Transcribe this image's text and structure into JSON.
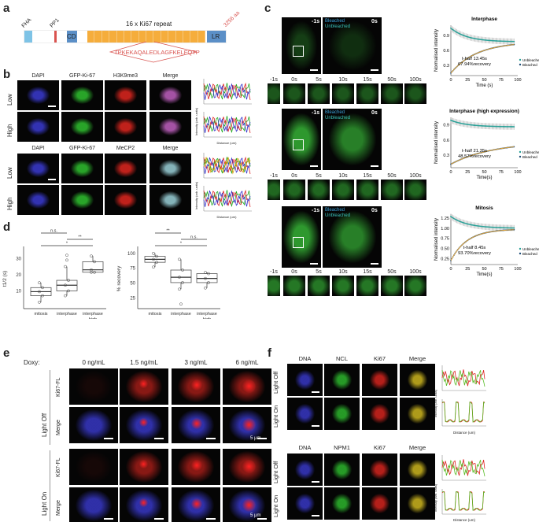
{
  "panel_labels": {
    "a": "a",
    "b": "b",
    "c": "c",
    "d": "d",
    "e": "e",
    "f": "f"
  },
  "a": {
    "domains": [
      "FHA",
      "PP1",
      "CD",
      "LR"
    ],
    "repeat_label": "16 x Ki67 repeat",
    "repeat_count": 16,
    "length_label": "3256 aa",
    "sequence": "TPKEKAQALEDLAGFKELFQTP",
    "colors": {
      "fha": "#7ec3e6",
      "pp1": "#d9534f",
      "cd": "#5b8fc7",
      "repeat": "#f5ad3c",
      "lr": "#5b8fc7",
      "seq": "#d9534f"
    }
  },
  "b": {
    "block1_headers": [
      "DAPI",
      "GFP-Ki-67",
      "H3K9me3",
      "Merge"
    ],
    "block2_headers": [
      "DAPI",
      "GFP-Ki-67",
      "MeCP2",
      "Merge"
    ],
    "row_labels": [
      "Low",
      "High"
    ],
    "plot_ylabel": "Intensity (arb. units)",
    "plot_xlabel": "Distance (um)"
  },
  "c": {
    "rows": [
      {
        "pre": "-1s",
        "post": "0s",
        "bleached": "Bleached",
        "unbleached": "Unbleached"
      },
      {
        "pre": "-1s",
        "post": "0s",
        "bleached": "Bleached",
        "unbleached": "Unbleached"
      },
      {
        "pre": "-1s",
        "post": "0s",
        "bleached": "Bleached",
        "unbleached": "Unbleached"
      }
    ],
    "timepoints": [
      "-1s",
      "0s",
      "5s",
      "10s",
      "15s",
      "50s",
      "100s"
    ]
  },
  "chart_data": [
    {
      "type": "line",
      "title": "Interphase",
      "xlabel": "Time (s)",
      "ylabel": "Normalised intensity",
      "xlim": [
        0,
        100
      ],
      "xticks": [
        0,
        25,
        50,
        75,
        100
      ],
      "yticks": [
        0.3,
        0.6,
        0.9
      ],
      "ylim": [
        0.1,
        1.1
      ],
      "series": [
        {
          "name": "Unbleached",
          "color": "#2aa198"
        },
        {
          "name": "Bleached",
          "color": "#1f4e79"
        }
      ],
      "annotation": [
        "t-half 13.45s",
        "67.94%recovery"
      ],
      "unbleached_end": 0.77,
      "bleached_start": 0.15,
      "bleached_end": 0.77
    },
    {
      "type": "line",
      "title": "Interphase (high expression)",
      "xlabel": "Time(s)",
      "ylabel": "Normalised intensity",
      "xlim": [
        0,
        100
      ],
      "xticks": [
        0,
        25,
        50,
        75,
        100
      ],
      "yticks": [
        0.3,
        0.6,
        0.9
      ],
      "ylim": [
        0.05,
        1.05
      ],
      "series": [
        {
          "name": "Unbleached",
          "color": "#2aa198"
        },
        {
          "name": "Bleached",
          "color": "#1f4e79"
        }
      ],
      "annotation": [
        "t-half 21.35s",
        "48.57%recovery"
      ],
      "unbleached_end": 0.86,
      "bleached_start": 0.12,
      "bleached_end": 0.56
    },
    {
      "type": "line",
      "title": "Mitosis",
      "xlabel": "Time(s)",
      "ylabel": "Normalised intensity",
      "xlim": [
        0,
        100
      ],
      "xticks": [
        0,
        25,
        50,
        75,
        100
      ],
      "yticks": [
        0.25,
        0.5,
        0.75,
        1.0,
        1.25
      ],
      "ylim": [
        0.1,
        1.35
      ],
      "series": [
        {
          "name": "Unbleached",
          "color": "#2aa198"
        },
        {
          "name": "Bleached",
          "color": "#1f4e79"
        }
      ],
      "annotation": [
        "t-half 8.45s",
        "93.70%recovery"
      ],
      "unbleached_end": 1.0,
      "bleached_start": 0.2,
      "bleached_end": 0.98
    },
    {
      "type": "box",
      "ylabel": "t1/2 (s)",
      "categories": [
        "mitosis",
        "interphase",
        "interphase\nhigh\nexpression"
      ],
      "yticks": [
        10,
        20,
        30
      ],
      "ylim": [
        0,
        35
      ],
      "boxes": [
        {
          "min": 3,
          "q1": 7,
          "median": 9.5,
          "q3": 12,
          "max": 15
        },
        {
          "min": 7,
          "q1": 10,
          "median": 13.5,
          "q3": 16.5,
          "max": 25
        },
        {
          "min": 21.5,
          "q1": 21.5,
          "median": 23,
          "q3": 28,
          "max": 31.5
        }
      ],
      "outliers": [
        [],
        [
          29,
          32
        ],
        []
      ],
      "significance": [
        {
          "pair": [
            0,
            1
          ],
          "label": "n.s."
        },
        {
          "pair": [
            1,
            2
          ],
          "label": "**"
        },
        {
          "pair": [
            0,
            2
          ],
          "label": "*"
        }
      ]
    },
    {
      "type": "box",
      "ylabel": "% recovery",
      "categories": [
        "mitosis",
        "interphase",
        "interphase\nhigh\nexpression"
      ],
      "yticks": [
        25,
        50,
        75,
        100
      ],
      "ylim": [
        10,
        105
      ],
      "boxes": [
        {
          "min": 77,
          "q1": 85,
          "median": 90,
          "q3": 95,
          "max": 100
        },
        {
          "min": 40,
          "q1": 51,
          "median": 60,
          "q3": 72,
          "max": 90
        },
        {
          "min": 42,
          "q1": 51,
          "median": 58,
          "q3": 66,
          "max": 68
        }
      ],
      "outliers": [
        [],
        [
          15
        ],
        []
      ],
      "significance": [
        {
          "pair": [
            0,
            1
          ],
          "label": "**"
        },
        {
          "pair": [
            1,
            2
          ],
          "label": "n.s."
        },
        {
          "pair": [
            0,
            2
          ],
          "label": "*"
        }
      ]
    }
  ],
  "e": {
    "doxy_label": "Doxy:",
    "columns": [
      "0 ng/mL",
      "1.5 ng/mL",
      "3 ng/mL",
      "6 ng/mL"
    ],
    "group_labels": [
      "Light Off",
      "Light On"
    ],
    "row_labels": [
      "Ki67-FL",
      "Merge"
    ],
    "scale": "5 μm"
  },
  "f": {
    "block1_headers": [
      "DNA",
      "NCL",
      "Ki67",
      "Merge"
    ],
    "block2_headers": [
      "DNA",
      "NPM1",
      "Ki67",
      "Merge"
    ],
    "row_labels": [
      "Light Off",
      "Light On"
    ],
    "plot_ylabel": "Intensity (arb. units)",
    "plot_xlabel": "Distance (um)"
  }
}
